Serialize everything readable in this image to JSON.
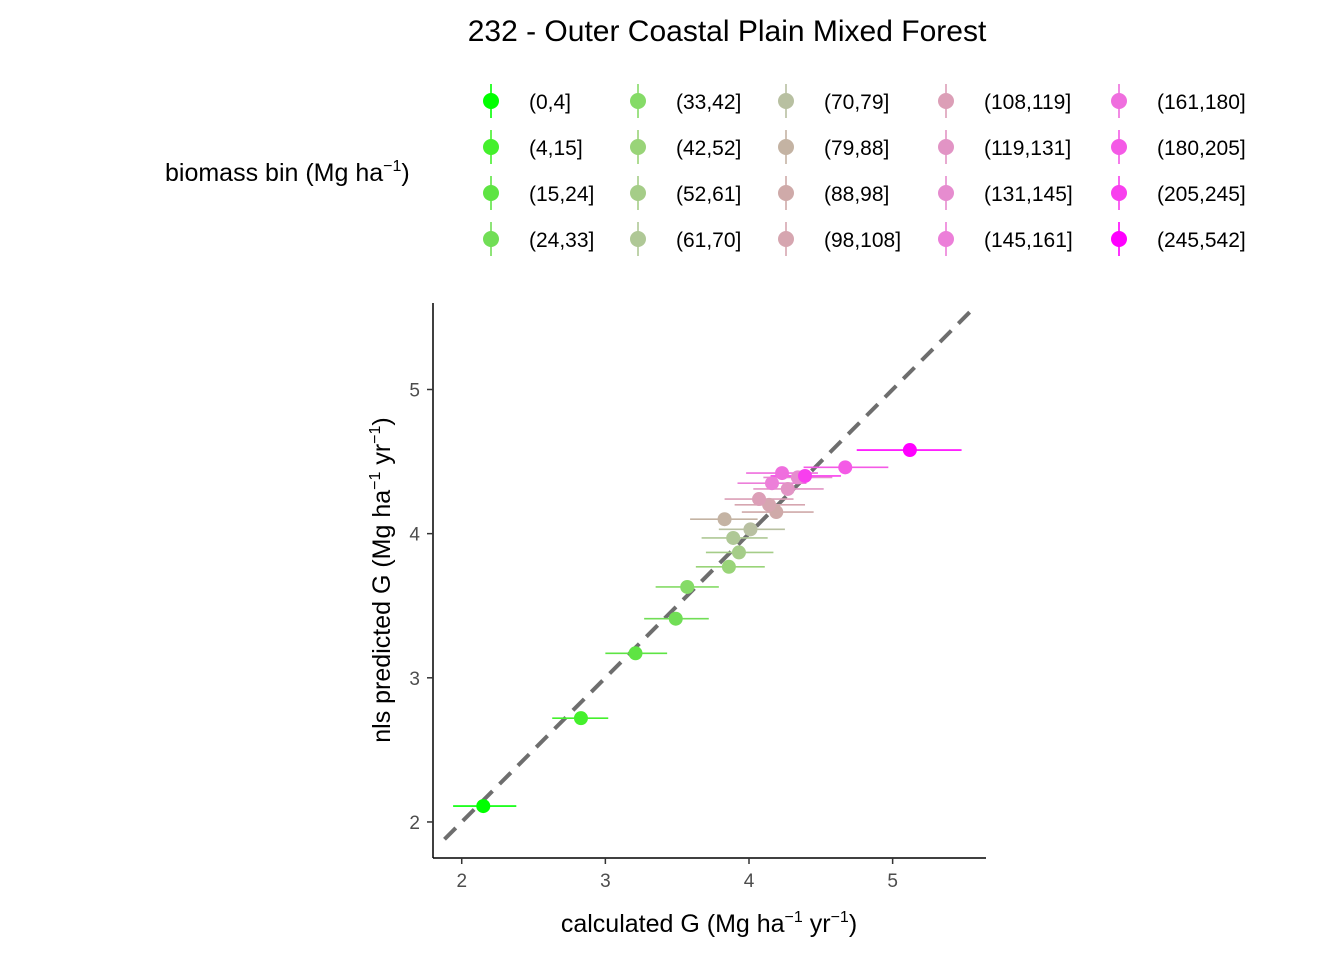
{
  "chart_data": {
    "type": "scatter",
    "title": "232 - Outer Coastal Plain Mixed Forest",
    "xlabel": {
      "pre": "calculated G (Mg ha",
      "sup1": "−1",
      "mid": " yr",
      "sup2": "−1",
      "post": ")"
    },
    "ylabel": {
      "pre": "nls predicted G (Mg ha",
      "sup1": "−1",
      "mid": " yr",
      "sup2": "−1",
      "post": ")"
    },
    "legend_title": {
      "pre": "biomass bin (Mg ha",
      "sup": "−1",
      "post": ")"
    },
    "legend_position": "top",
    "xlim": [
      1.8,
      5.65
    ],
    "ylim": [
      1.75,
      5.6
    ],
    "x_ticks": [
      2,
      3,
      4,
      5
    ],
    "y_ticks": [
      2,
      3,
      4,
      5
    ],
    "x_tick_labels": [
      "2",
      "3",
      "4",
      "5"
    ],
    "y_tick_labels": [
      "2",
      "3",
      "4",
      "5"
    ],
    "grid": false,
    "reference_line": {
      "style": "dashed",
      "slope": 1,
      "intercept": 0,
      "color": "#6e6e6e"
    },
    "series": [
      {
        "name": "(0,4]",
        "color": "#00ff00",
        "x": 2.15,
        "y": 2.11,
        "xerr": [
          1.94,
          2.38
        ]
      },
      {
        "name": "(4,15]",
        "color": "#44f02c",
        "x": 2.83,
        "y": 2.72,
        "xerr": [
          2.63,
          3.02
        ]
      },
      {
        "name": "(15,24]",
        "color": "#5ee443",
        "x": 3.21,
        "y": 3.17,
        "xerr": [
          3.0,
          3.43
        ]
      },
      {
        "name": "(24,33]",
        "color": "#71de56",
        "x": 3.49,
        "y": 3.41,
        "xerr": [
          3.27,
          3.72
        ]
      },
      {
        "name": "(33,42]",
        "color": "#85db67",
        "x": 3.57,
        "y": 3.63,
        "xerr": [
          3.35,
          3.79
        ]
      },
      {
        "name": "(42,52]",
        "color": "#99d478",
        "x": 3.86,
        "y": 3.77,
        "xerr": [
          3.63,
          4.11
        ]
      },
      {
        "name": "(52,61]",
        "color": "#a5cd88",
        "x": 3.93,
        "y": 3.87,
        "xerr": [
          3.7,
          4.17
        ]
      },
      {
        "name": "(61,70]",
        "color": "#afc896",
        "x": 3.89,
        "y": 3.97,
        "xerr": [
          3.67,
          4.13
        ]
      },
      {
        "name": "(70,79]",
        "color": "#b8c0a1",
        "x": 4.01,
        "y": 4.03,
        "xerr": [
          3.79,
          4.25
        ]
      },
      {
        "name": "(79,88]",
        "color": "#c4b3a3",
        "x": 3.83,
        "y": 4.1,
        "xerr": [
          3.59,
          4.06
        ]
      },
      {
        "name": "(88,98]",
        "color": "#cfaaa9",
        "x": 4.19,
        "y": 4.15,
        "xerr": [
          3.95,
          4.45
        ]
      },
      {
        "name": "(98,108]",
        "color": "#d6a6b0",
        "x": 4.14,
        "y": 4.2,
        "xerr": [
          3.9,
          4.39
        ]
      },
      {
        "name": "(108,119]",
        "color": "#dc9fb7",
        "x": 4.07,
        "y": 4.24,
        "xerr": [
          3.83,
          4.31
        ]
      },
      {
        "name": "(119,131]",
        "color": "#e294c5",
        "x": 4.27,
        "y": 4.31,
        "xerr": [
          4.03,
          4.52
        ]
      },
      {
        "name": "(131,145]",
        "color": "#e68ccf",
        "x": 4.34,
        "y": 4.39,
        "xerr": [
          4.1,
          4.58
        ]
      },
      {
        "name": "(145,161]",
        "color": "#ec7fd9",
        "x": 4.16,
        "y": 4.35,
        "xerr": [
          3.92,
          4.4
        ]
      },
      {
        "name": "(161,180]",
        "color": "#ef6ede",
        "x": 4.23,
        "y": 4.42,
        "xerr": [
          3.98,
          4.48
        ]
      },
      {
        "name": "(180,205]",
        "color": "#f45ae6",
        "x": 4.67,
        "y": 4.46,
        "xerr": [
          4.38,
          4.97
        ]
      },
      {
        "name": "(205,245]",
        "color": "#f83fee",
        "x": 4.39,
        "y": 4.4,
        "xerr": [
          4.15,
          4.64
        ]
      },
      {
        "name": "(245,542]",
        "color": "#ff00ff",
        "x": 5.12,
        "y": 4.58,
        "xerr": [
          4.75,
          5.48
        ]
      }
    ]
  }
}
